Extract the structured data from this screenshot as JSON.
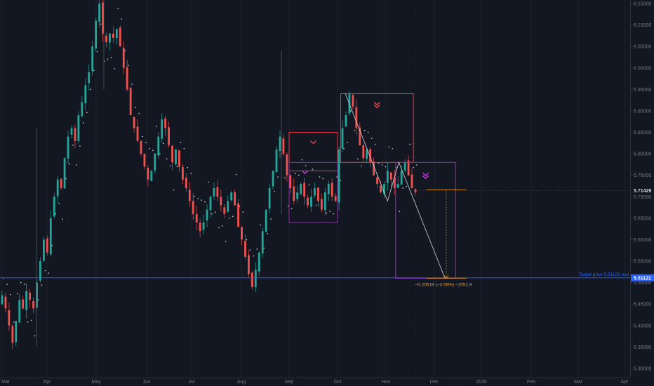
{
  "chart_data": {
    "type": "candlestick",
    "y_axis_position": "right",
    "ylim": [
      5.29,
      6.16
    ],
    "y_ticks": [
      "6.15000",
      "6.10000",
      "6.05000",
      "6.00000",
      "5.95000",
      "5.90000",
      "5.85000",
      "5.80000",
      "5.75000",
      "5.70000",
      "5.65000",
      "5.60000",
      "5.55000",
      "5.50000",
      "5.45000",
      "5.40000",
      "5.35000",
      "5.30000"
    ],
    "x_ticks": [
      "Mar",
      "Apr",
      "May",
      "Jun",
      "Jul",
      "Aug",
      "Sep",
      "Oct",
      "Nov",
      "Dec",
      "2020",
      "Feb",
      "Mar",
      "Apr"
    ],
    "current_price": "5.71429",
    "target_line": {
      "price": 5.51121,
      "label": "Target price 5.51121 usd",
      "badge": "5.51121"
    },
    "measure_text": "−0.20519 (−3.59%) −2051.9",
    "close_path": [
      5.47,
      5.44,
      5.4,
      5.36,
      5.41,
      5.46,
      5.44,
      5.48,
      5.46,
      5.44,
      5.5,
      5.55,
      5.6,
      5.57,
      5.65,
      5.7,
      5.74,
      5.72,
      5.79,
      5.84,
      5.86,
      5.83,
      5.89,
      5.92,
      5.96,
      5.99,
      6.05,
      6.11,
      6.15,
      6.08,
      6.06,
      6.08,
      6.07,
      6.09,
      6.05,
      6.0,
      5.95,
      5.89,
      5.86,
      5.83,
      5.8,
      5.77,
      5.74,
      5.76,
      5.8,
      5.84,
      5.88,
      5.86,
      5.82,
      5.78,
      5.81,
      5.77,
      5.74,
      5.72,
      5.69,
      5.66,
      5.64,
      5.62,
      5.64,
      5.67,
      5.7,
      5.72,
      5.7,
      5.68,
      5.66,
      5.69,
      5.71,
      5.68,
      5.63,
      5.6,
      5.56,
      5.52,
      5.49,
      5.53,
      5.57,
      5.62,
      5.67,
      5.72,
      5.76,
      5.81,
      5.84,
      5.8,
      5.75,
      5.72,
      5.69,
      5.71,
      5.73,
      5.7,
      5.68,
      5.7,
      5.72,
      5.69,
      5.67,
      5.71,
      5.73,
      5.7,
      5.69,
      5.81,
      5.86,
      5.89,
      5.94,
      5.91,
      5.86,
      5.82,
      5.79,
      5.81,
      5.78,
      5.75,
      5.73,
      5.71,
      5.73,
      5.76,
      5.74,
      5.72,
      5.73,
      5.76,
      5.78,
      5.75,
      5.72,
      5.71
    ],
    "boxes": [
      {
        "name": "box-sep-upper",
        "color": "#f23645",
        "t1": "2019-09-01",
        "t2": "2019-10-01",
        "p1": 5.85,
        "p2": 5.76,
        "arrow": "down"
      },
      {
        "name": "box-sep-lower",
        "color": "#9c27b0",
        "t1": "2019-09-01",
        "t2": "2019-10-01",
        "p1": 5.78,
        "p2": 5.64,
        "arrow": "down"
      },
      {
        "name": "box-oct",
        "color": "#f23645",
        "t1": "2019-10-03",
        "t2": "2019-11-18",
        "p1": 5.94,
        "p2": 5.78,
        "arrow": "double-down"
      },
      {
        "name": "box-nov",
        "color": "#9c27b0",
        "t1": "2019-11-07",
        "t2": "2019-12-15",
        "p1": 5.78,
        "p2": 5.51,
        "arrow": "double-down"
      }
    ],
    "colors": {
      "background": "#131722",
      "grid": "#1e222d",
      "up": "#26a69a",
      "down": "#ef5350",
      "target_line": "#2962ff",
      "target_label": "#2962ff",
      "measure": "#f7a21b",
      "projection": "#d1d4dc",
      "sar_dots": "#d1d4dc"
    }
  }
}
